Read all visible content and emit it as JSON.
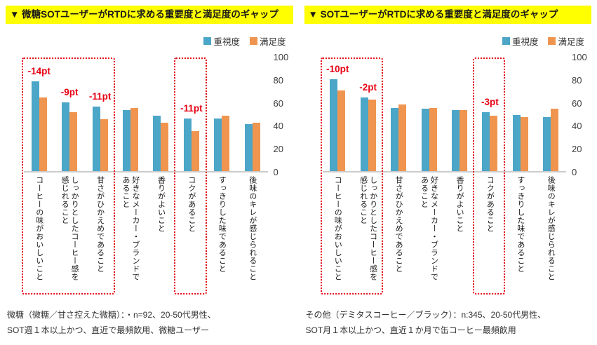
{
  "colors": {
    "title_bg": "#ffff00",
    "importance": "#4ba6c7",
    "satisfaction": "#f0954f",
    "accent_red": "#e60012",
    "axis_text": "#3d3d3d"
  },
  "chart_data": [
    {
      "type": "bar",
      "title": "▼ 微糖SOTユーザーがRTDに求める重要度と満足度のギャップ",
      "legend": [
        "重視度",
        "満足度"
      ],
      "legend_position": "top-right",
      "grid": false,
      "ylim": [
        0,
        100
      ],
      "y_ticks": [
        100,
        80,
        60,
        40,
        20,
        0
      ],
      "categories": [
        "コーヒーの味がおいしいこと",
        "しっかりとしたコーヒー感を感じれること",
        "甘さがひかえめであること",
        "好きなメーカー・ブランドであること",
        "香りがよいこと",
        "コクがあること",
        "すっきりした味であること",
        "後味のキレが感じられること"
      ],
      "series": [
        {
          "name": "重視度",
          "color": "#4ba6c7",
          "values": [
            78,
            60,
            56,
            53,
            48,
            46,
            46,
            41
          ]
        },
        {
          "name": "満足度",
          "color": "#f0954f",
          "values": [
            64,
            51,
            45,
            55,
            42,
            35,
            48,
            42
          ]
        }
      ],
      "annotations": [
        {
          "text": "-14pt",
          "category_index": 0
        },
        {
          "text": "-9pt",
          "category_index": 1
        },
        {
          "text": "-11pt",
          "category_index": 2
        },
        {
          "text": "-11pt",
          "category_index": 5
        }
      ],
      "highlight_boxes": [
        {
          "from_index": 0,
          "to_index": 2
        },
        {
          "from_index": 5,
          "to_index": 5
        }
      ],
      "caption_line1": "微糖（微糖／甘さ控えた微糖）：・n=92、20-50代男性、",
      "caption_line2": "SOT週１本以上かつ、直近で最頻飲用、微糖ユーザー"
    },
    {
      "type": "bar",
      "title": "▼ SOTユーザーがRTDに求める重要度と満足度のギャップ",
      "legend": [
        "重視度",
        "満足度"
      ],
      "legend_position": "top-right",
      "grid": false,
      "ylim": [
        0,
        100
      ],
      "y_ticks": [
        100,
        80,
        60,
        40,
        20,
        0
      ],
      "categories": [
        "コーヒーの味がおいしいこと",
        "しっかりとしたコーヒー感を感じれること",
        "甘さがひかえめであること",
        "好きなメーカー・ブランドであること",
        "香りがよいこと",
        "コクがあること",
        "すっきりした味であること",
        "後味のキレが感じられること"
      ],
      "series": [
        {
          "name": "重視度",
          "color": "#4ba6c7",
          "values": [
            80,
            64,
            55,
            54,
            53,
            51,
            49,
            47
          ]
        },
        {
          "name": "満足度",
          "color": "#f0954f",
          "values": [
            70,
            62,
            58,
            55,
            53,
            48,
            47,
            54
          ]
        }
      ],
      "annotations": [
        {
          "text": "-10pt",
          "category_index": 0
        },
        {
          "text": "-2pt",
          "category_index": 1
        },
        {
          "text": "-3pt",
          "category_index": 5
        }
      ],
      "highlight_boxes": [
        {
          "from_index": 0,
          "to_index": 1
        },
        {
          "from_index": 5,
          "to_index": 5
        }
      ],
      "caption_line1": "その他（デミタスコーヒー／ブラック）：n:345、20-50代男性、",
      "caption_line2": "SOT月１本以上かつ、直近１か月で缶コーヒー最頻飲用"
    }
  ]
}
